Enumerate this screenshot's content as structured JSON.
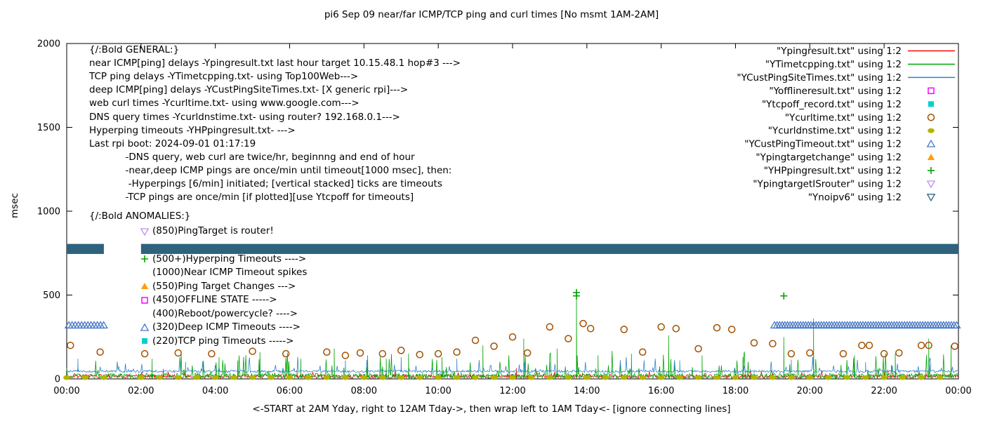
{
  "title": "pi6 Sep 09  near/far ICMP/TCP ping and curl times [No msmt 1AM-2AM]",
  "ylabel": "msec",
  "xlabel": "<-START at 2AM Yday, right to 12AM Tday->, then wrap left to 1AM Tday<- [ignore connecting lines]",
  "legend": [
    {
      "label": "\"Ypingresult.txt\" using 1:2",
      "marker": "line",
      "color": "#ff0000"
    },
    {
      "label": "\"YTimetcpping.txt\" using 1:2",
      "marker": "line",
      "color": "#00a400"
    },
    {
      "label": "\"YCustPingSiteTimes.txt\" using 1:2",
      "marker": "line",
      "color": "#3080c8"
    },
    {
      "label": "\"Yofflineresult.txt\" using 1:2",
      "marker": "square-open",
      "color": "#ff00ff"
    },
    {
      "label": "\"Ytcpoff_record.txt\" using 1:2",
      "marker": "square-filled",
      "color": "#00d0d0"
    },
    {
      "label": "\"Ycurltime.txt\" using 1:2",
      "marker": "circle-open",
      "color": "#a05000"
    },
    {
      "label": "\"Ycurldnstime.txt\" using 1:2",
      "marker": "circle-filled",
      "color": "#b4b400"
    },
    {
      "label": "\"YCustPingTimeout.txt\" using 1:2",
      "marker": "triangle-up-open",
      "color": "#4878c8"
    },
    {
      "label": "\"Ypingtargetchange\" using 1:2",
      "marker": "triangle-up-filled",
      "color": "#ffa000"
    },
    {
      "label": "\"YHPpingresult.txt\" using 1:2",
      "marker": "plus",
      "color": "#00a400"
    },
    {
      "label": "\"YpingtargetISrouter\" using 1:2",
      "marker": "triangle-down-open",
      "color": "#bf8ff0"
    },
    {
      "label": "\"Ynoipv6\" using 1:2",
      "marker": "triangle-down-open",
      "color": "#2e627f"
    }
  ],
  "annotations": {
    "general": [
      "{/:Bold GENERAL:}",
      "near ICMP[ping] delays -Ypingresult.txt last hour target 10.15.48.1 hop#3 --->",
      "TCP ping delays -YTimetcpping.txt- using Top100Web--->",
      "deep ICMP[ping] delays -YCustPingSiteTimes.txt- [X generic rpi]--->",
      "web curl times -Ycurltime.txt- using www.google.com--->",
      "DNS query times -Ycurldnstime.txt- using router? 192.168.0.1--->",
      "Hyperping timeouts -YHPpingresult.txt- --->",
      "Last rpi boot: 2024-09-01 01:17:19",
      "            -DNS query, web curl are twice/hr, beginnng and end of hour",
      "            -near,deep ICMP pings are once/min until timeout[1000 msec], then:",
      "             -Hyperpings [6/min] initiated; [vertical stacked] ticks are timeouts",
      "            -TCP pings are once/min [if plotted][use Ytcpoff for timeouts]"
    ],
    "anomalies_title": "{/:Bold ANOMALIES:}",
    "anomalies": [
      {
        "marker": "triangle-down-open",
        "color": "#bf8ff0",
        "text": "(850)PingTarget is router!"
      },
      {
        "marker": "plus",
        "color": "#00a400",
        "text": "(500+)Hyperping Timeouts ---->"
      },
      {
        "marker": "none",
        "color": "",
        "text": "(1000)Near ICMP Timeout spikes"
      },
      {
        "marker": "triangle-up-filled",
        "color": "#ffa000",
        "text": "(550)Ping Target Changes --->"
      },
      {
        "marker": "square-open",
        "color": "#ff00ff",
        "text": "(450)OFFLINE STATE ----->"
      },
      {
        "marker": "none",
        "color": "",
        "text": "(400)Reboot/powercycle? ---->"
      },
      {
        "marker": "triangle-up-open",
        "color": "#4878c8",
        "text": "(320)Deep ICMP Timeouts ---->"
      },
      {
        "marker": "square-filled",
        "color": "#00d0d0",
        "text": "(220)TCP ping Timeouts ----->"
      }
    ]
  },
  "chart_data": {
    "type": "line",
    "x_unit": "hours",
    "xlim": [
      0,
      24
    ],
    "ylim": [
      0,
      2000
    ],
    "yticks": [
      0,
      500,
      1000,
      1500,
      2000
    ],
    "xtick_hours": [
      0,
      2,
      4,
      6,
      8,
      10,
      12,
      14,
      16,
      18,
      20,
      22,
      24
    ],
    "xtick_labels": [
      "00:00",
      "02:00",
      "04:00",
      "06:00",
      "08:00",
      "10:00",
      "12:00",
      "14:00",
      "16:00",
      "18:00",
      "20:00",
      "22:00",
      "00:00"
    ],
    "grid": false,
    "legend_position": "top-right-inside",
    "noise_lines": [
      {
        "name": "Ypingresult",
        "color": "#ff0000",
        "seed": 11,
        "base": 4,
        "jitter": 22,
        "spike_chance": 0.05,
        "spike_amp": 38,
        "spikes": [
          [
            2.6,
            60
          ],
          [
            6.2,
            55
          ],
          [
            12.1,
            65
          ],
          [
            18.4,
            60
          ],
          [
            22.1,
            55
          ]
        ]
      },
      {
        "name": "YTimetcpping",
        "color": "#00a400",
        "seed": 23,
        "base": 3,
        "jitter": 30,
        "spike_chance": 0.1,
        "spike_amp": 140,
        "spikes": [
          [
            2.3,
            120
          ],
          [
            3.2,
            100
          ],
          [
            4.1,
            130
          ],
          [
            4.6,
            110
          ],
          [
            5.2,
            160
          ],
          [
            6.3,
            120
          ],
          [
            7.2,
            180
          ],
          [
            8.1,
            140
          ],
          [
            8.6,
            120
          ],
          [
            9.2,
            150
          ],
          [
            10.1,
            130
          ],
          [
            11.2,
            200
          ],
          [
            12.3,
            240
          ],
          [
            13.2,
            180
          ],
          [
            13.72,
            500
          ],
          [
            14.3,
            140
          ],
          [
            15.2,
            150
          ],
          [
            16.2,
            260
          ],
          [
            17.1,
            140
          ],
          [
            18.2,
            130
          ],
          [
            19.3,
            250
          ],
          [
            20.1,
            360
          ],
          [
            21.2,
            140
          ],
          [
            22.3,
            150
          ],
          [
            23.2,
            240
          ],
          [
            23.8,
            200
          ]
        ]
      },
      {
        "name": "YCustPingSiteTimes",
        "color": "#3080c8",
        "seed": 37,
        "base": 38,
        "jitter": 14,
        "spike_chance": 0.08,
        "spike_amp": 90,
        "spikes": [
          [
            0.3,
            120
          ],
          [
            7.5,
            110
          ],
          [
            9.0,
            130
          ],
          [
            10.5,
            120
          ],
          [
            13.0,
            100
          ],
          [
            16.5,
            110
          ],
          [
            19.5,
            115
          ],
          [
            21.5,
            100
          ]
        ]
      }
    ],
    "scatter": [
      {
        "name": "Ycurltime",
        "marker": "circle-open",
        "color": "#a05000",
        "points": [
          [
            0.1,
            200
          ],
          [
            0.9,
            160
          ],
          [
            2.1,
            150
          ],
          [
            3.0,
            155
          ],
          [
            3.9,
            150
          ],
          [
            5.0,
            165
          ],
          [
            5.9,
            150
          ],
          [
            7.0,
            160
          ],
          [
            7.5,
            140
          ],
          [
            7.9,
            155
          ],
          [
            8.5,
            150
          ],
          [
            9.0,
            170
          ],
          [
            9.5,
            145
          ],
          [
            10.0,
            150
          ],
          [
            10.5,
            160
          ],
          [
            11.0,
            230
          ],
          [
            11.5,
            195
          ],
          [
            12.0,
            250
          ],
          [
            12.4,
            155
          ],
          [
            13.0,
            310
          ],
          [
            13.5,
            240
          ],
          [
            13.9,
            330
          ],
          [
            14.1,
            300
          ],
          [
            15.0,
            295
          ],
          [
            15.5,
            160
          ],
          [
            16.0,
            310
          ],
          [
            16.4,
            300
          ],
          [
            17.0,
            180
          ],
          [
            17.5,
            305
          ],
          [
            17.9,
            295
          ],
          [
            18.5,
            215
          ],
          [
            19.0,
            210
          ],
          [
            19.5,
            150
          ],
          [
            20.0,
            155
          ],
          [
            20.9,
            150
          ],
          [
            21.4,
            200
          ],
          [
            21.6,
            200
          ],
          [
            22.0,
            150
          ],
          [
            22.4,
            155
          ],
          [
            23.0,
            200
          ],
          [
            23.2,
            200
          ],
          [
            23.9,
            195
          ]
        ]
      },
      {
        "name": "Ycurldnstime",
        "marker": "circle-filled",
        "color": "#b4b400",
        "runs": [
          {
            "from": 0,
            "to": 1,
            "step": 0.5,
            "y": 8
          },
          {
            "from": 2,
            "to": 23.9,
            "step": 0.5,
            "y": 8
          }
        ]
      },
      {
        "name": "YCustPingTimeout",
        "marker": "triangle-up-open",
        "color": "#4878c8",
        "runs": [
          {
            "from": 0.06,
            "to": 1.0,
            "step": 0.085,
            "y": 320
          },
          {
            "from": 19.05,
            "to": 23.97,
            "step": 0.07,
            "y": 320
          }
        ]
      },
      {
        "name": "YHPpingresult",
        "marker": "plus",
        "color": "#00a400",
        "points": [
          [
            13.72,
            495
          ],
          [
            13.72,
            515
          ],
          [
            19.3,
            495
          ]
        ]
      },
      {
        "name": "Yofflineresult",
        "marker": "square-open",
        "color": "#ff00ff",
        "points": []
      },
      {
        "name": "Ytcpoff_record",
        "marker": "square-filled",
        "color": "#00d0d0",
        "points": []
      },
      {
        "name": "Ypingtargetchange",
        "marker": "triangle-up-filled",
        "color": "#ffa000",
        "points": []
      },
      {
        "name": "YpingtargetISrouter",
        "marker": "triangle-down-open",
        "color": "#bf8ff0",
        "points": []
      }
    ],
    "band": {
      "name": "Ynoipv6",
      "color": "#2e627f",
      "y": 775,
      "half_height": 30,
      "runs": [
        [
          0,
          1
        ],
        [
          2,
          24
        ]
      ]
    }
  }
}
